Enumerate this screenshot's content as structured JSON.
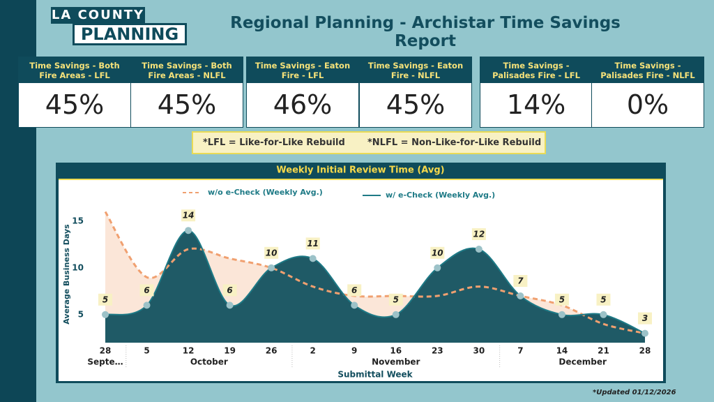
{
  "header": {
    "logo_top": "LA COUNTY",
    "logo_bottom": "PLANNING",
    "title": "Regional Planning - Archistar Time Savings Report"
  },
  "kpis": [
    {
      "label": "Time Savings - Both Fire Areas - LFL",
      "value": "45%"
    },
    {
      "label": "Time Savings - Both Fire Areas - NLFL",
      "value": "45%"
    },
    {
      "label": "Time Savings - Eaton Fire - LFL",
      "value": "46%"
    },
    {
      "label": "Time Savings - Eaton Fire - NLFL",
      "value": "45%"
    },
    {
      "label": "Time Savings - Palisades Fire - LFL",
      "value": "14%"
    },
    {
      "label": "Time Savings - Palisades Fire - NLFL",
      "value": "0%"
    }
  ],
  "note": {
    "lfl": "*LFL = Like-for-Like Rebuild",
    "nlfl": "*NLFL = Non-Like-for-Like Rebuild"
  },
  "chart_data": {
    "type": "area",
    "title": "Weekly Initial Review Time (Avg)",
    "x_label": "Submittal Week",
    "y_label": "Average Business Days",
    "categories": [
      "28",
      "5",
      "12",
      "19",
      "26",
      "2",
      "9",
      "16",
      "23",
      "30",
      "7",
      "14",
      "21",
      "28"
    ],
    "months": [
      {
        "label": "Septe…",
        "weeks": 1
      },
      {
        "label": "October",
        "weeks": 4
      },
      {
        "label": "November",
        "weeks": 5
      },
      {
        "label": "December",
        "weeks": 4
      }
    ],
    "series": [
      {
        "name": "w/o e-Check (Weekly Avg.)",
        "color": "#f0a070",
        "fill": "#fbe3d4",
        "dashed": true,
        "values": [
          16,
          9,
          12,
          11,
          10,
          8,
          7,
          7,
          7,
          8,
          7,
          6,
          4,
          3
        ]
      },
      {
        "name": "w/ e-Check (Weekly Avg.)",
        "color": "#1e7a86",
        "fill": "#1f5a66",
        "dashed": false,
        "data_labels": true,
        "values": [
          5,
          6,
          14,
          6,
          10,
          11,
          6,
          5,
          10,
          12,
          7,
          5,
          5,
          3
        ]
      }
    ],
    "ylim": [
      2,
      17
    ],
    "yticks": [
      5,
      10,
      15
    ],
    "grid": false
  },
  "footer": {
    "updated": "*Updated 01/12/2026"
  }
}
